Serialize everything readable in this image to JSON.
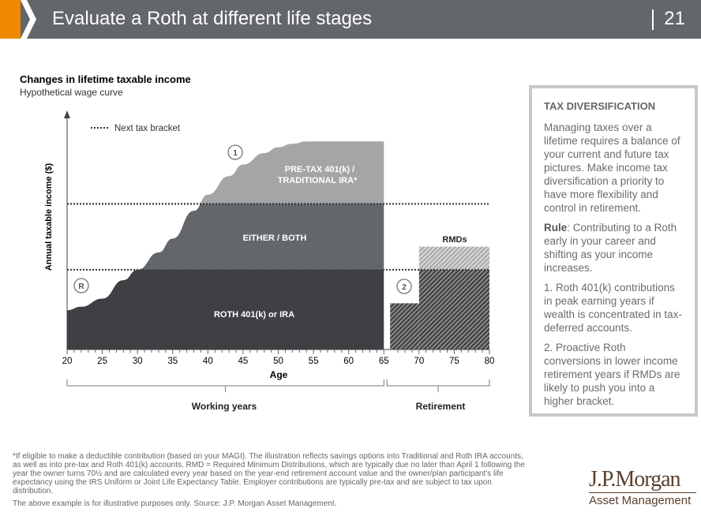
{
  "header": {
    "title": "Evaluate a Roth at different life stages",
    "page": "21"
  },
  "chart_title": "Changes in lifetime taxable income",
  "chart_subtitle": "Hypothetical wage curve",
  "chart_data": {
    "type": "area",
    "title": "Changes in lifetime taxable income",
    "subtitle": "Hypothetical wage curve",
    "xlabel": "Age",
    "ylabel": "Annual taxable income ($)",
    "xlim": [
      20,
      80
    ],
    "ylim": [
      0,
      100
    ],
    "x_ticks": [
      20,
      25,
      30,
      35,
      40,
      45,
      50,
      55,
      60,
      65,
      70,
      75,
      80
    ],
    "legend": {
      "label": "Next tax bracket",
      "placement": "top-left"
    },
    "tax_brackets": [
      34.5,
      63
    ],
    "working_curve": {
      "x": [
        20,
        22,
        25,
        28,
        30,
        33,
        35,
        38,
        40,
        43,
        45,
        48,
        50,
        52,
        54,
        56,
        65
      ],
      "y": [
        17,
        18.5,
        22,
        30,
        34.5,
        42,
        48,
        60,
        67,
        75,
        80,
        85,
        87.5,
        89,
        90,
        90,
        90
      ]
    },
    "retirement_income": {
      "x": [
        66,
        70,
        70,
        80
      ],
      "y": [
        20,
        20,
        34.5,
        34.5
      ]
    },
    "rmds": {
      "x": [
        70,
        80
      ],
      "y_from": 34.5,
      "y_to": 44.5
    },
    "region_labels": [
      "PRE-TAX 401(k) / TRADITIONAL IRA*",
      "EITHER / BOTH",
      "ROTH 401(k) or IRA",
      "RMDs"
    ],
    "markers": [
      "1",
      "R",
      "2"
    ],
    "brackets": [
      "Working years",
      "Retirement"
    ]
  },
  "sidebar": {
    "heading": "TAX DIVERSIFICATION",
    "p1": "Managing taxes over a lifetime requires a balance of your current and future tax pictures. Make income tax diversification a priority to have more flexibility and control in retirement.",
    "rule_label": "Rule",
    "rule_text": ": Contributing to a Roth early in your career and shifting as your income increases.",
    "p3": "1. Roth 401(k) contributions in peak earning years if wealth is concentrated in tax-deferred accounts.",
    "p4": "2. Proactive Roth conversions in lower income retirement years if RMDs are likely to push you into a higher bracket."
  },
  "footnote": "*If eligible to make a deductible contribution (based on your MAGI). The illustration reflects savings options into Traditional and Roth IRA accounts, as well as into pre-tax and Roth 401(k) accounts. RMD = Required Minimum Distributions, which are typically due no later than April 1 following the year the owner turns 70½ and are calculated every year based on the year-end retirement account value and the owner/plan participant's life expectancy using the IRS Uniform or Joint Life Expectancy Table. Employer contributions are typically pre-tax and are subject to tax upon distribution.",
  "source": "The above example is for illustrative purposes only. Source: J.P. Morgan Asset Management.",
  "logo": {
    "line1": "J.P.Morgan",
    "line2": "Asset Management"
  }
}
